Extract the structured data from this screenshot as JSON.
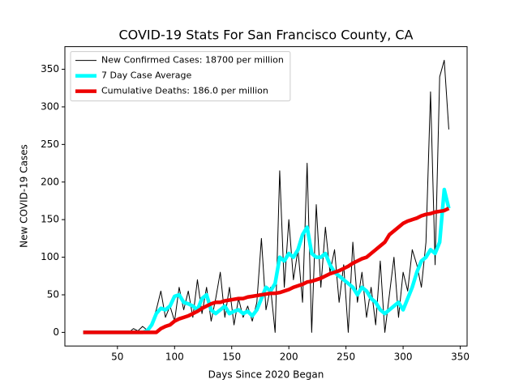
{
  "chart_data": {
    "type": "line",
    "title": "COVID-19 Stats For San Francisco County, CA",
    "x_label": "Days Since 2020 Began",
    "y_label": "New COVID-19 Cases",
    "legend": "upper left",
    "x": [
      20,
      24,
      28,
      32,
      36,
      40,
      44,
      48,
      52,
      56,
      60,
      64,
      68,
      72,
      76,
      80,
      84,
      88,
      92,
      96,
      100,
      104,
      108,
      112,
      116,
      120,
      124,
      128,
      132,
      136,
      140,
      144,
      148,
      152,
      156,
      160,
      164,
      168,
      172,
      176,
      180,
      184,
      188,
      192,
      196,
      200,
      204,
      208,
      212,
      216,
      220,
      224,
      228,
      232,
      236,
      240,
      244,
      248,
      252,
      256,
      260,
      264,
      268,
      272,
      276,
      280,
      284,
      288,
      292,
      296,
      300,
      304,
      308,
      312,
      316,
      320,
      324,
      328,
      332,
      336,
      340
    ],
    "series": [
      {
        "name": "New Confirmed Cases: 18700 per million",
        "color": "#000000",
        "width": 1,
        "values": [
          0,
          0,
          0,
          0,
          0,
          0,
          0,
          0,
          0,
          0,
          0,
          5,
          2,
          8,
          3,
          12,
          30,
          55,
          20,
          35,
          15,
          60,
          30,
          55,
          20,
          70,
          25,
          60,
          15,
          45,
          80,
          20,
          60,
          10,
          45,
          20,
          35,
          15,
          40,
          125,
          30,
          60,
          0,
          215,
          60,
          150,
          70,
          110,
          40,
          225,
          0,
          170,
          60,
          140,
          80,
          110,
          40,
          90,
          0,
          120,
          40,
          80,
          20,
          60,
          10,
          95,
          0,
          50,
          100,
          20,
          80,
          55,
          110,
          90,
          60,
          120,
          320,
          90,
          340,
          362,
          270
        ]
      },
      {
        "name": "7 Day Case Average",
        "color": "#00ffff",
        "width": 4.5,
        "values": [
          0,
          0,
          0,
          0,
          0,
          0,
          0,
          0,
          0,
          0,
          0,
          0,
          0,
          0,
          2,
          10,
          25,
          32,
          30,
          35,
          48,
          50,
          40,
          38,
          35,
          30,
          45,
          50,
          30,
          25,
          30,
          35,
          25,
          28,
          30,
          25,
          28,
          22,
          30,
          45,
          60,
          55,
          65,
          100,
          95,
          105,
          100,
          110,
          130,
          140,
          105,
          100,
          100,
          105,
          90,
          80,
          75,
          70,
          65,
          60,
          50,
          60,
          55,
          45,
          40,
          30,
          25,
          30,
          35,
          40,
          30,
          45,
          60,
          80,
          95,
          100,
          110,
          105,
          120,
          190,
          165
        ]
      },
      {
        "name": "Cumulative Deaths: 186.0 per million",
        "color": "#ee0000",
        "width": 4.5,
        "values": [
          0,
          0,
          0,
          0,
          0,
          0,
          0,
          0,
          0,
          0,
          0,
          0,
          0,
          0,
          0,
          0,
          0,
          5,
          8,
          10,
          15,
          18,
          20,
          22,
          25,
          28,
          32,
          35,
          38,
          40,
          40,
          42,
          43,
          44,
          45,
          45,
          47,
          48,
          49,
          50,
          51,
          52,
          52,
          53,
          55,
          57,
          60,
          62,
          64,
          67,
          68,
          70,
          72,
          75,
          78,
          80,
          82,
          85,
          88,
          92,
          95,
          98,
          100,
          105,
          110,
          115,
          120,
          130,
          135,
          140,
          145,
          148,
          150,
          152,
          155,
          157,
          158,
          160,
          161,
          162,
          165
        ]
      }
    ],
    "xlim": [
      4,
      356
    ],
    "xticks": [
      50,
      100,
      150,
      200,
      250,
      300,
      350
    ],
    "ylim": [
      -18.1,
      380.1
    ],
    "yticks": [
      0,
      50,
      100,
      150,
      200,
      250,
      300,
      350
    ]
  }
}
